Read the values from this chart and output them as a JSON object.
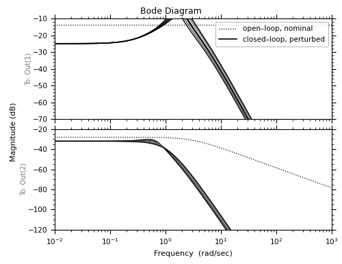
{
  "title": "Bode Diagram",
  "xlabel": "Frequency  (rad/sec)",
  "ylabel": "Magnitude (dB)",
  "ylabel1": "To: Out(1)",
  "ylabel2": "To: Out(2)",
  "ylim1": [
    -70,
    -10
  ],
  "ylim2": [
    -120,
    -20
  ],
  "yticks1": [
    -70,
    -60,
    -50,
    -40,
    -30,
    -20,
    -10
  ],
  "yticks2": [
    -120,
    -100,
    -80,
    -60,
    -40,
    -20
  ],
  "legend_dotted": "open–loop, nominal",
  "legend_solid": "closed–loop, perturbed",
  "n_perturbed": 7
}
